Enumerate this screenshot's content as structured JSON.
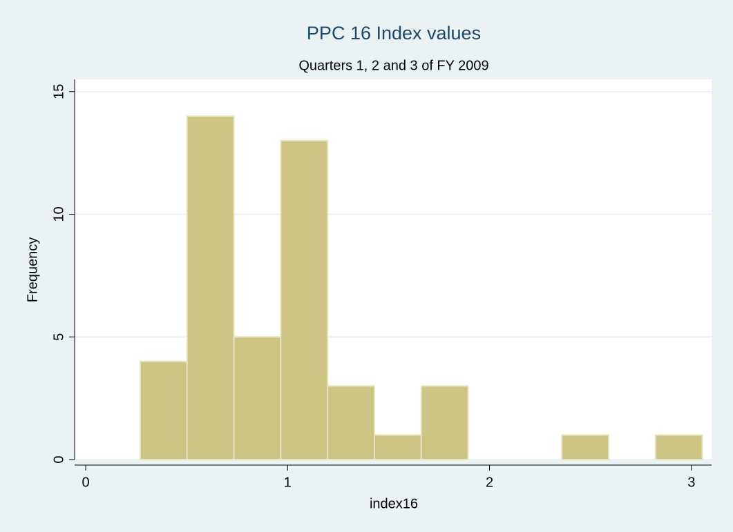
{
  "chart_data": {
    "type": "histogram",
    "title": "PPC 16 Index values",
    "subtitle": "Quarters 1, 2 and 3 of FY 2009",
    "x_label": "index16",
    "y_label": "Frequency",
    "bins": [
      0.27,
      0.502,
      0.734,
      0.966,
      1.198,
      1.43,
      1.662,
      1.894,
      2.126,
      2.358,
      2.59,
      2.822,
      3.054
    ],
    "values": [
      4,
      14,
      5,
      13,
      3,
      1,
      3,
      0,
      0,
      1,
      0,
      1
    ],
    "color": "#cdc584",
    "edge_color": "#e8e3c0",
    "xlim": [
      -0.055,
      3.1
    ],
    "xticks": [
      0,
      1,
      2,
      3
    ],
    "ylim": [
      0,
      15.5
    ],
    "yticks": [
      0,
      5,
      10,
      15
    ],
    "grid": true
  }
}
